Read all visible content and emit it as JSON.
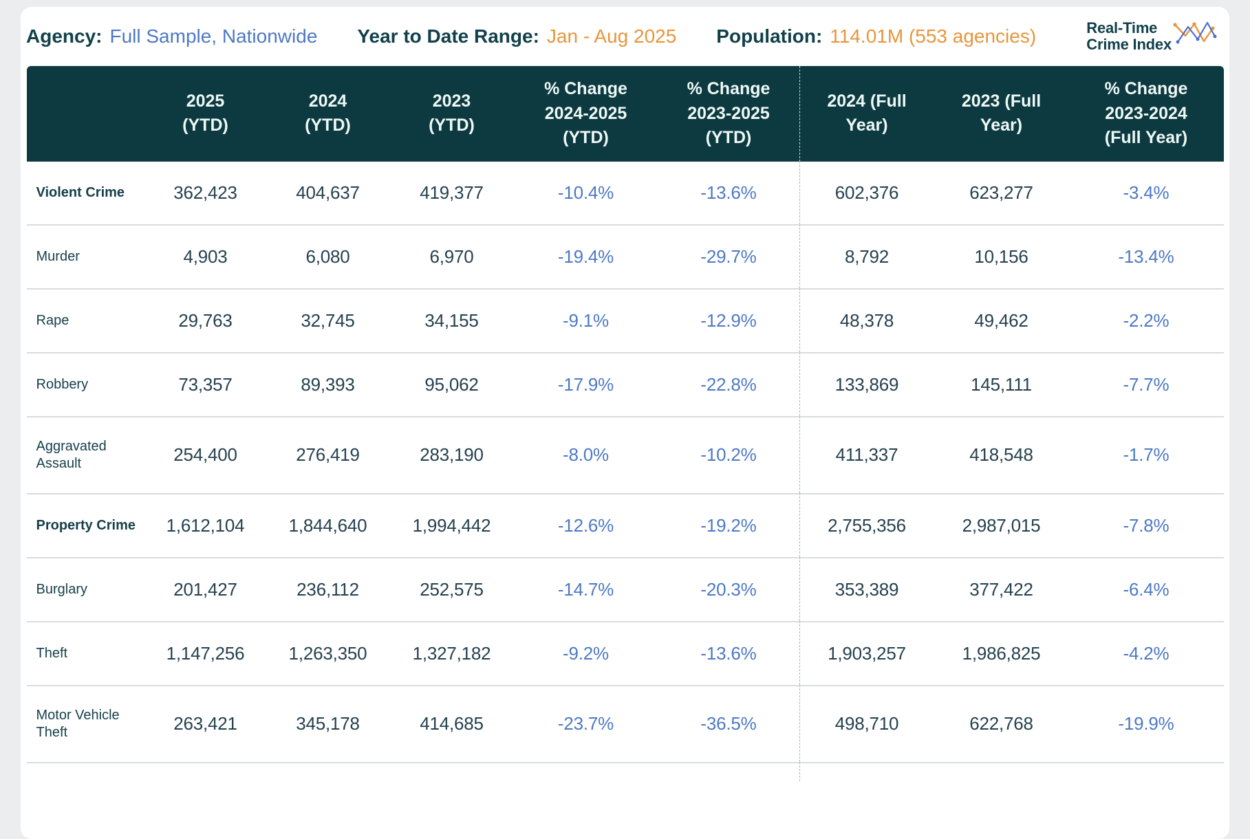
{
  "summary": {
    "agency_label": "Agency:",
    "agency_value": "Full Sample, Nationwide",
    "ytd_range_label": "Year to Date Range:",
    "ytd_range_value": "Jan - Aug 2025",
    "population_label": "Population:",
    "population_value": "114.01M (553 agencies)"
  },
  "logo": {
    "line1": "Real-Time",
    "line2": "Crime Index"
  },
  "colors": {
    "header_bg": "#0d3a40",
    "header_text": "#eef8f5",
    "label_teal": "#11404a",
    "value_blue": "#4d79c4",
    "value_orange": "#e8953c",
    "percent_blue": "#4d79c4",
    "row_border": "#d9dbdd",
    "page_bg": "#ecedef"
  },
  "table": {
    "divider_before": 5,
    "percent_columns": [
      3,
      4,
      7
    ],
    "columns": [
      {
        "id": "y2025_ytd",
        "label": "2025\n(YTD)"
      },
      {
        "id": "y2024_ytd",
        "label": "2024\n(YTD)"
      },
      {
        "id": "y2023_ytd",
        "label": "2023\n(YTD)"
      },
      {
        "id": "pct_2024_2025_ytd",
        "label": "% Change\n2024-2025\n(YTD)"
      },
      {
        "id": "pct_2023_2025_ytd",
        "label": "% Change\n2023-2025\n(YTD)"
      },
      {
        "id": "y2024_full",
        "label": "2024 (Full\nYear)"
      },
      {
        "id": "y2023_full",
        "label": "2023 (Full\nYear)"
      },
      {
        "id": "pct_2023_2024_full",
        "label": "% Change\n2023-2024\n(Full Year)"
      }
    ],
    "rows": [
      {
        "label": "Violent Crime",
        "bold": true,
        "values": [
          "362,423",
          "404,637",
          "419,377",
          "-10.4%",
          "-13.6%",
          "602,376",
          "623,277",
          "-3.4%"
        ]
      },
      {
        "label": "Murder",
        "bold": false,
        "values": [
          "4,903",
          "6,080",
          "6,970",
          "-19.4%",
          "-29.7%",
          "8,792",
          "10,156",
          "-13.4%"
        ]
      },
      {
        "label": "Rape",
        "bold": false,
        "values": [
          "29,763",
          "32,745",
          "34,155",
          "-9.1%",
          "-12.9%",
          "48,378",
          "49,462",
          "-2.2%"
        ]
      },
      {
        "label": "Robbery",
        "bold": false,
        "values": [
          "73,357",
          "89,393",
          "95,062",
          "-17.9%",
          "-22.8%",
          "133,869",
          "145,111",
          "-7.7%"
        ]
      },
      {
        "label": "Aggravated Assault",
        "bold": false,
        "values": [
          "254,400",
          "276,419",
          "283,190",
          "-8.0%",
          "-10.2%",
          "411,337",
          "418,548",
          "-1.7%"
        ]
      },
      {
        "label": "Property Crime",
        "bold": true,
        "values": [
          "1,612,104",
          "1,844,640",
          "1,994,442",
          "-12.6%",
          "-19.2%",
          "2,755,356",
          "2,987,015",
          "-7.8%"
        ]
      },
      {
        "label": "Burglary",
        "bold": false,
        "values": [
          "201,427",
          "236,112",
          "252,575",
          "-14.7%",
          "-20.3%",
          "353,389",
          "377,422",
          "-6.4%"
        ]
      },
      {
        "label": "Theft",
        "bold": false,
        "values": [
          "1,147,256",
          "1,263,350",
          "1,327,182",
          "-9.2%",
          "-13.6%",
          "1,903,257",
          "1,986,825",
          "-4.2%"
        ]
      },
      {
        "label": "Motor Vehicle Theft",
        "bold": false,
        "values": [
          "263,421",
          "345,178",
          "414,685",
          "-23.7%",
          "-36.5%",
          "498,710",
          "622,768",
          "-19.9%"
        ]
      }
    ]
  }
}
